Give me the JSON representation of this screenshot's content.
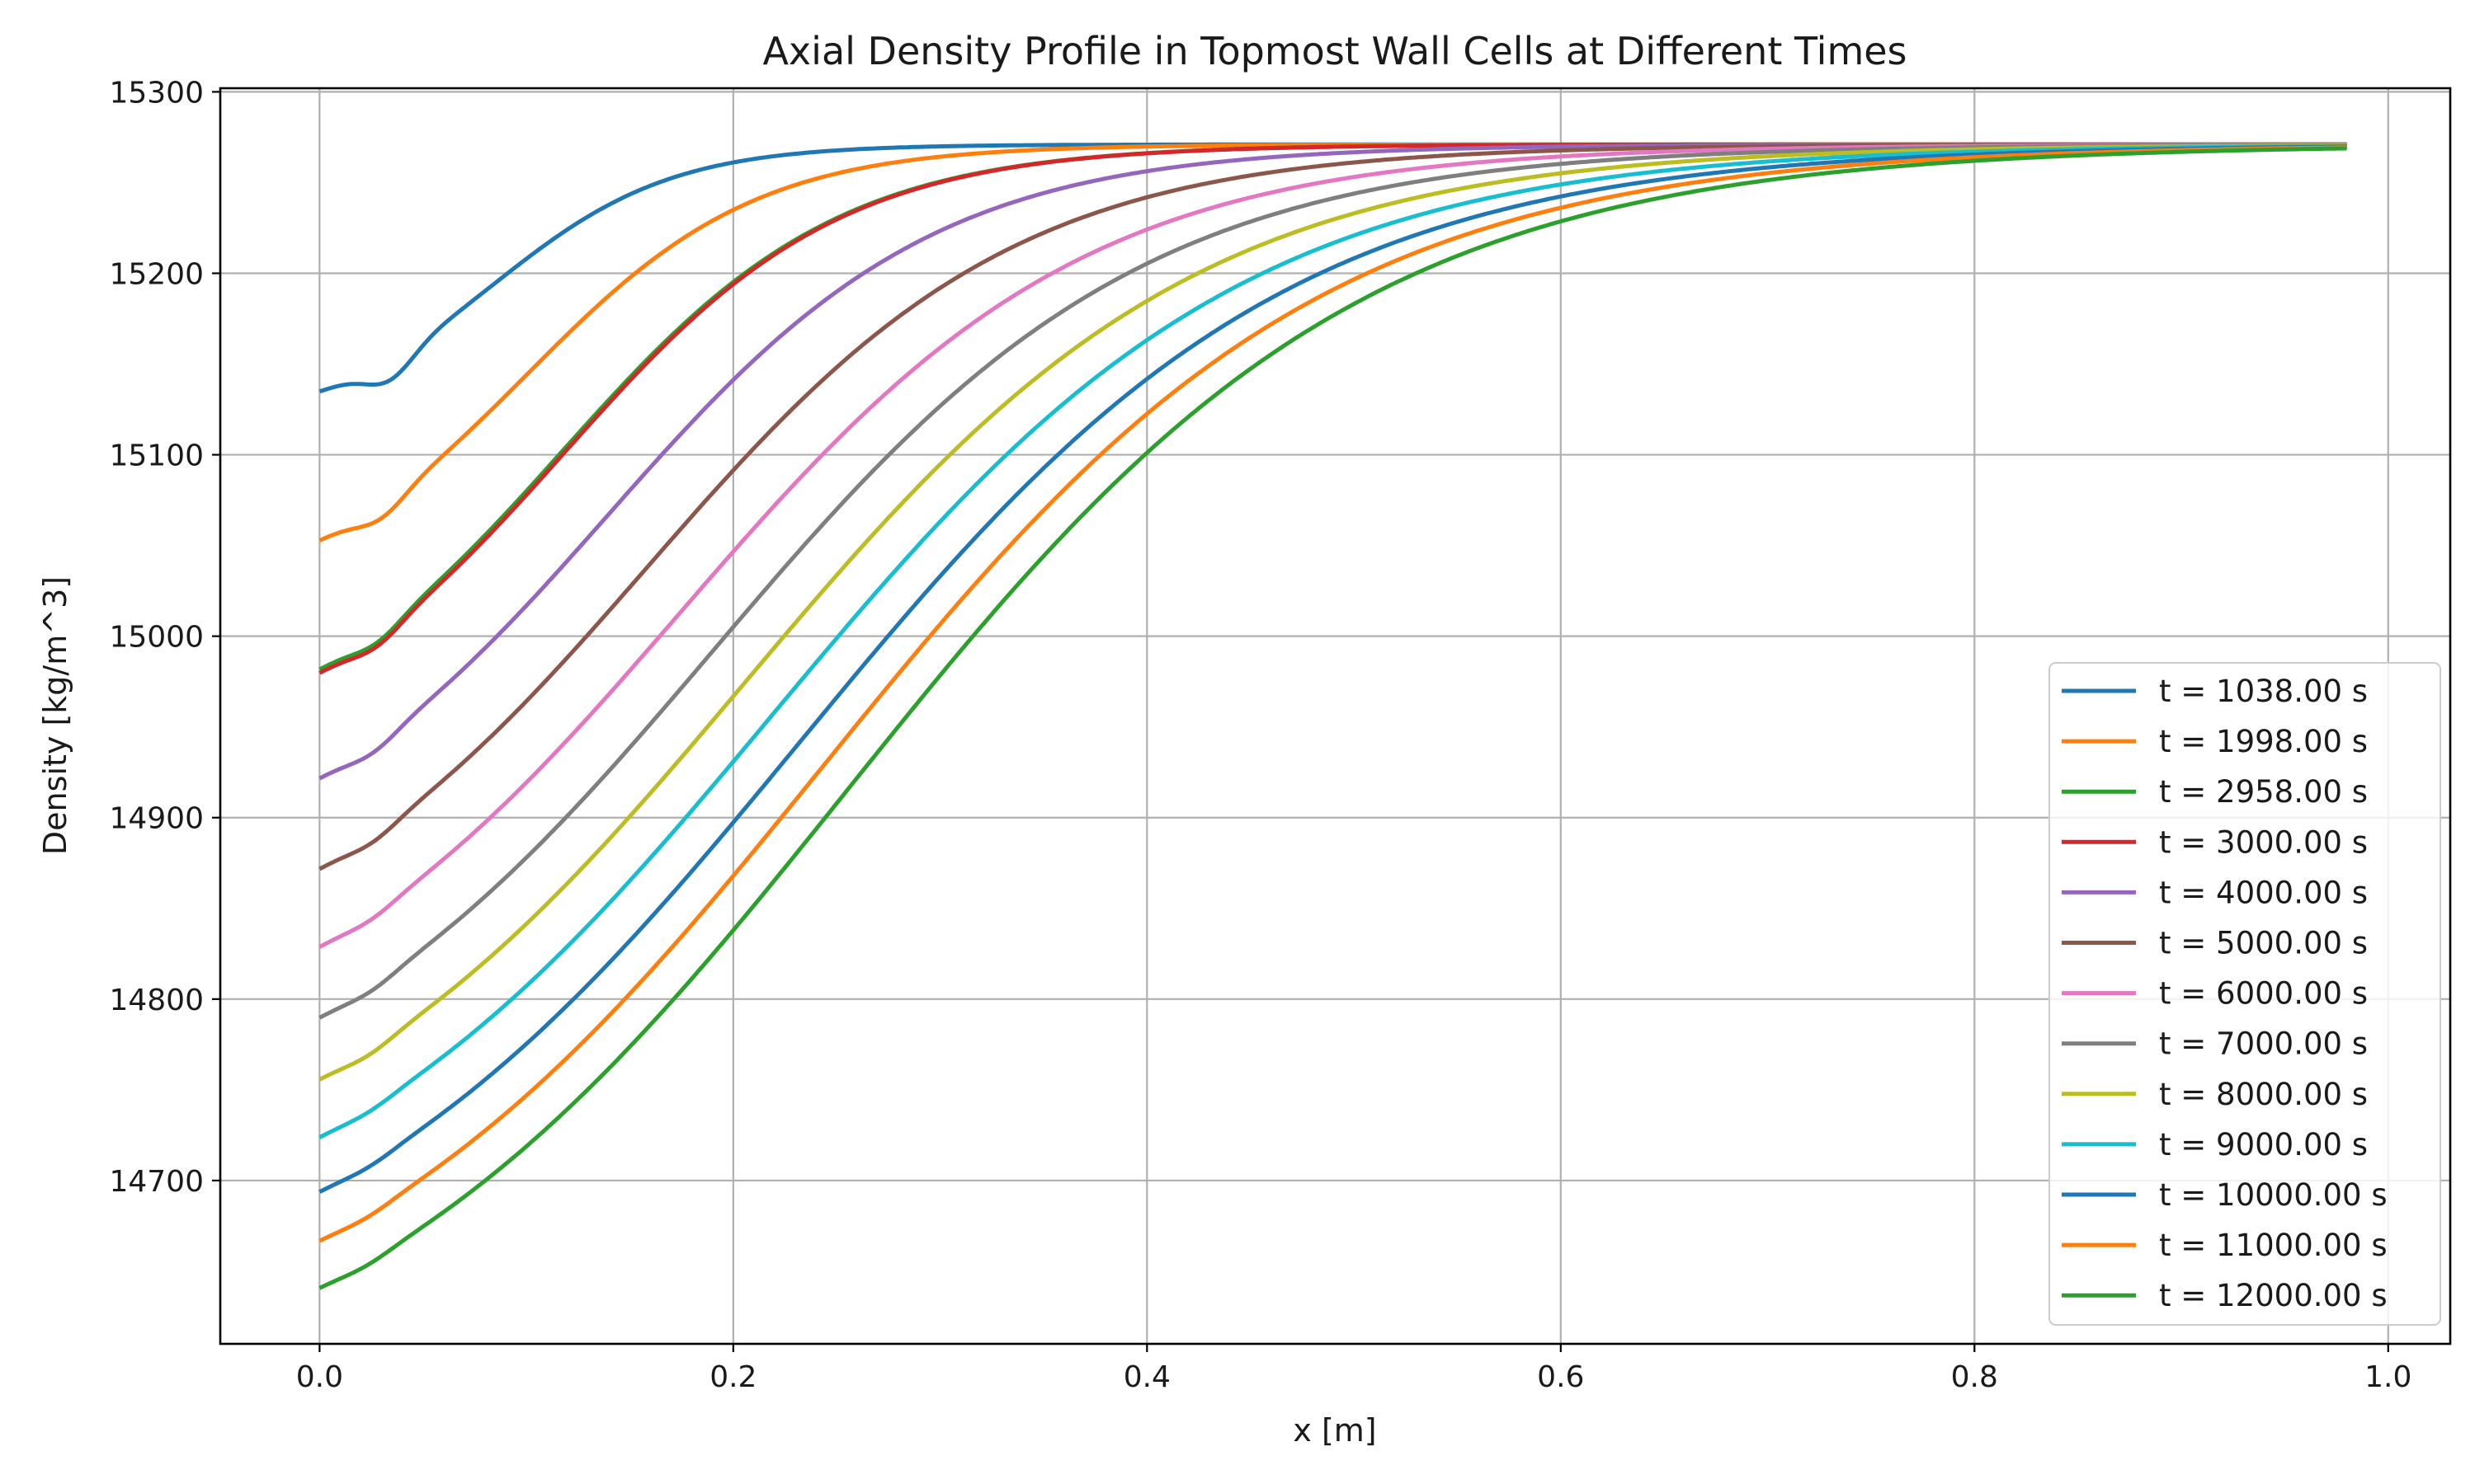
{
  "chart_data": {
    "type": "line",
    "title": "Axial Density Profile in Topmost Wall Cells at Different Times",
    "xlabel": "x [m]",
    "ylabel": "Density [kg/m^3]",
    "xlim": [
      -0.048,
      1.03
    ],
    "ylim": [
      14610,
      15302
    ],
    "xticks": [
      "0.0",
      "0.2",
      "0.4",
      "0.6",
      "0.8",
      "1.0"
    ],
    "yticks": [
      "14700",
      "14800",
      "14900",
      "15000",
      "15100",
      "15200",
      "15300"
    ],
    "grid": true,
    "legend_position": "lower right",
    "x_range": [
      0.0,
      0.98
    ],
    "plateau_value": 15271,
    "series": [
      {
        "name": "t = 1038.00 s",
        "color": "#1f77b4",
        "start": 15135,
        "x_dip": 0.034,
        "dip_depth": 12,
        "x_mid": 0.083,
        "k": 23.0
      },
      {
        "name": "t = 1998.00 s",
        "color": "#ff7f0e",
        "start": 15053,
        "x_dip": 0.03,
        "dip_depth": 8,
        "x_mid": 0.1,
        "k": 18.0
      },
      {
        "name": "t = 2958.00 s",
        "color": "#2ca02c",
        "start": 14982,
        "x_dip": 0.028,
        "dip_depth": 6,
        "x_mid": 0.117,
        "k": 15.0
      },
      {
        "name": "t = 3000.00 s",
        "color": "#d62728",
        "start": 14980,
        "x_dip": 0.028,
        "dip_depth": 6,
        "x_mid": 0.118,
        "k": 15.0
      },
      {
        "name": "t = 4000.00 s",
        "color": "#9467bd",
        "start": 14922,
        "x_dip": 0.026,
        "dip_depth": 5,
        "x_mid": 0.139,
        "k": 12.6
      },
      {
        "name": "t = 5000.00 s",
        "color": "#8c564b",
        "start": 14872,
        "x_dip": 0.026,
        "dip_depth": 4,
        "x_mid": 0.158,
        "k": 11.2
      },
      {
        "name": "t = 6000.00 s",
        "color": "#e377c2",
        "start": 14829,
        "x_dip": 0.025,
        "dip_depth": 3,
        "x_mid": 0.174,
        "k": 10.2
      },
      {
        "name": "t = 7000.00 s",
        "color": "#7f7f7f",
        "start": 14790,
        "x_dip": 0.025,
        "dip_depth": 3,
        "x_mid": 0.19,
        "k": 9.6
      },
      {
        "name": "t = 8000.00 s",
        "color": "#bcbd22",
        "start": 14756,
        "x_dip": 0.024,
        "dip_depth": 3,
        "x_mid": 0.205,
        "k": 9.1
      },
      {
        "name": "t = 9000.00 s",
        "color": "#17becf",
        "start": 14724,
        "x_dip": 0.024,
        "dip_depth": 2,
        "x_mid": 0.219,
        "k": 8.7
      },
      {
        "name": "t = 10000.00 s",
        "color": "#1f77b4",
        "start": 14694,
        "x_dip": 0.024,
        "dip_depth": 2,
        "x_mid": 0.232,
        "k": 8.4
      },
      {
        "name": "t = 11000.00 s",
        "color": "#ff7f0e",
        "start": 14667,
        "x_dip": 0.023,
        "dip_depth": 2,
        "x_mid": 0.243,
        "k": 8.2
      },
      {
        "name": "t = 12000.00 s",
        "color": "#2ca02c",
        "start": 14641,
        "x_dip": 0.023,
        "dip_depth": 2,
        "x_mid": 0.255,
        "k": 8.0
      }
    ]
  }
}
